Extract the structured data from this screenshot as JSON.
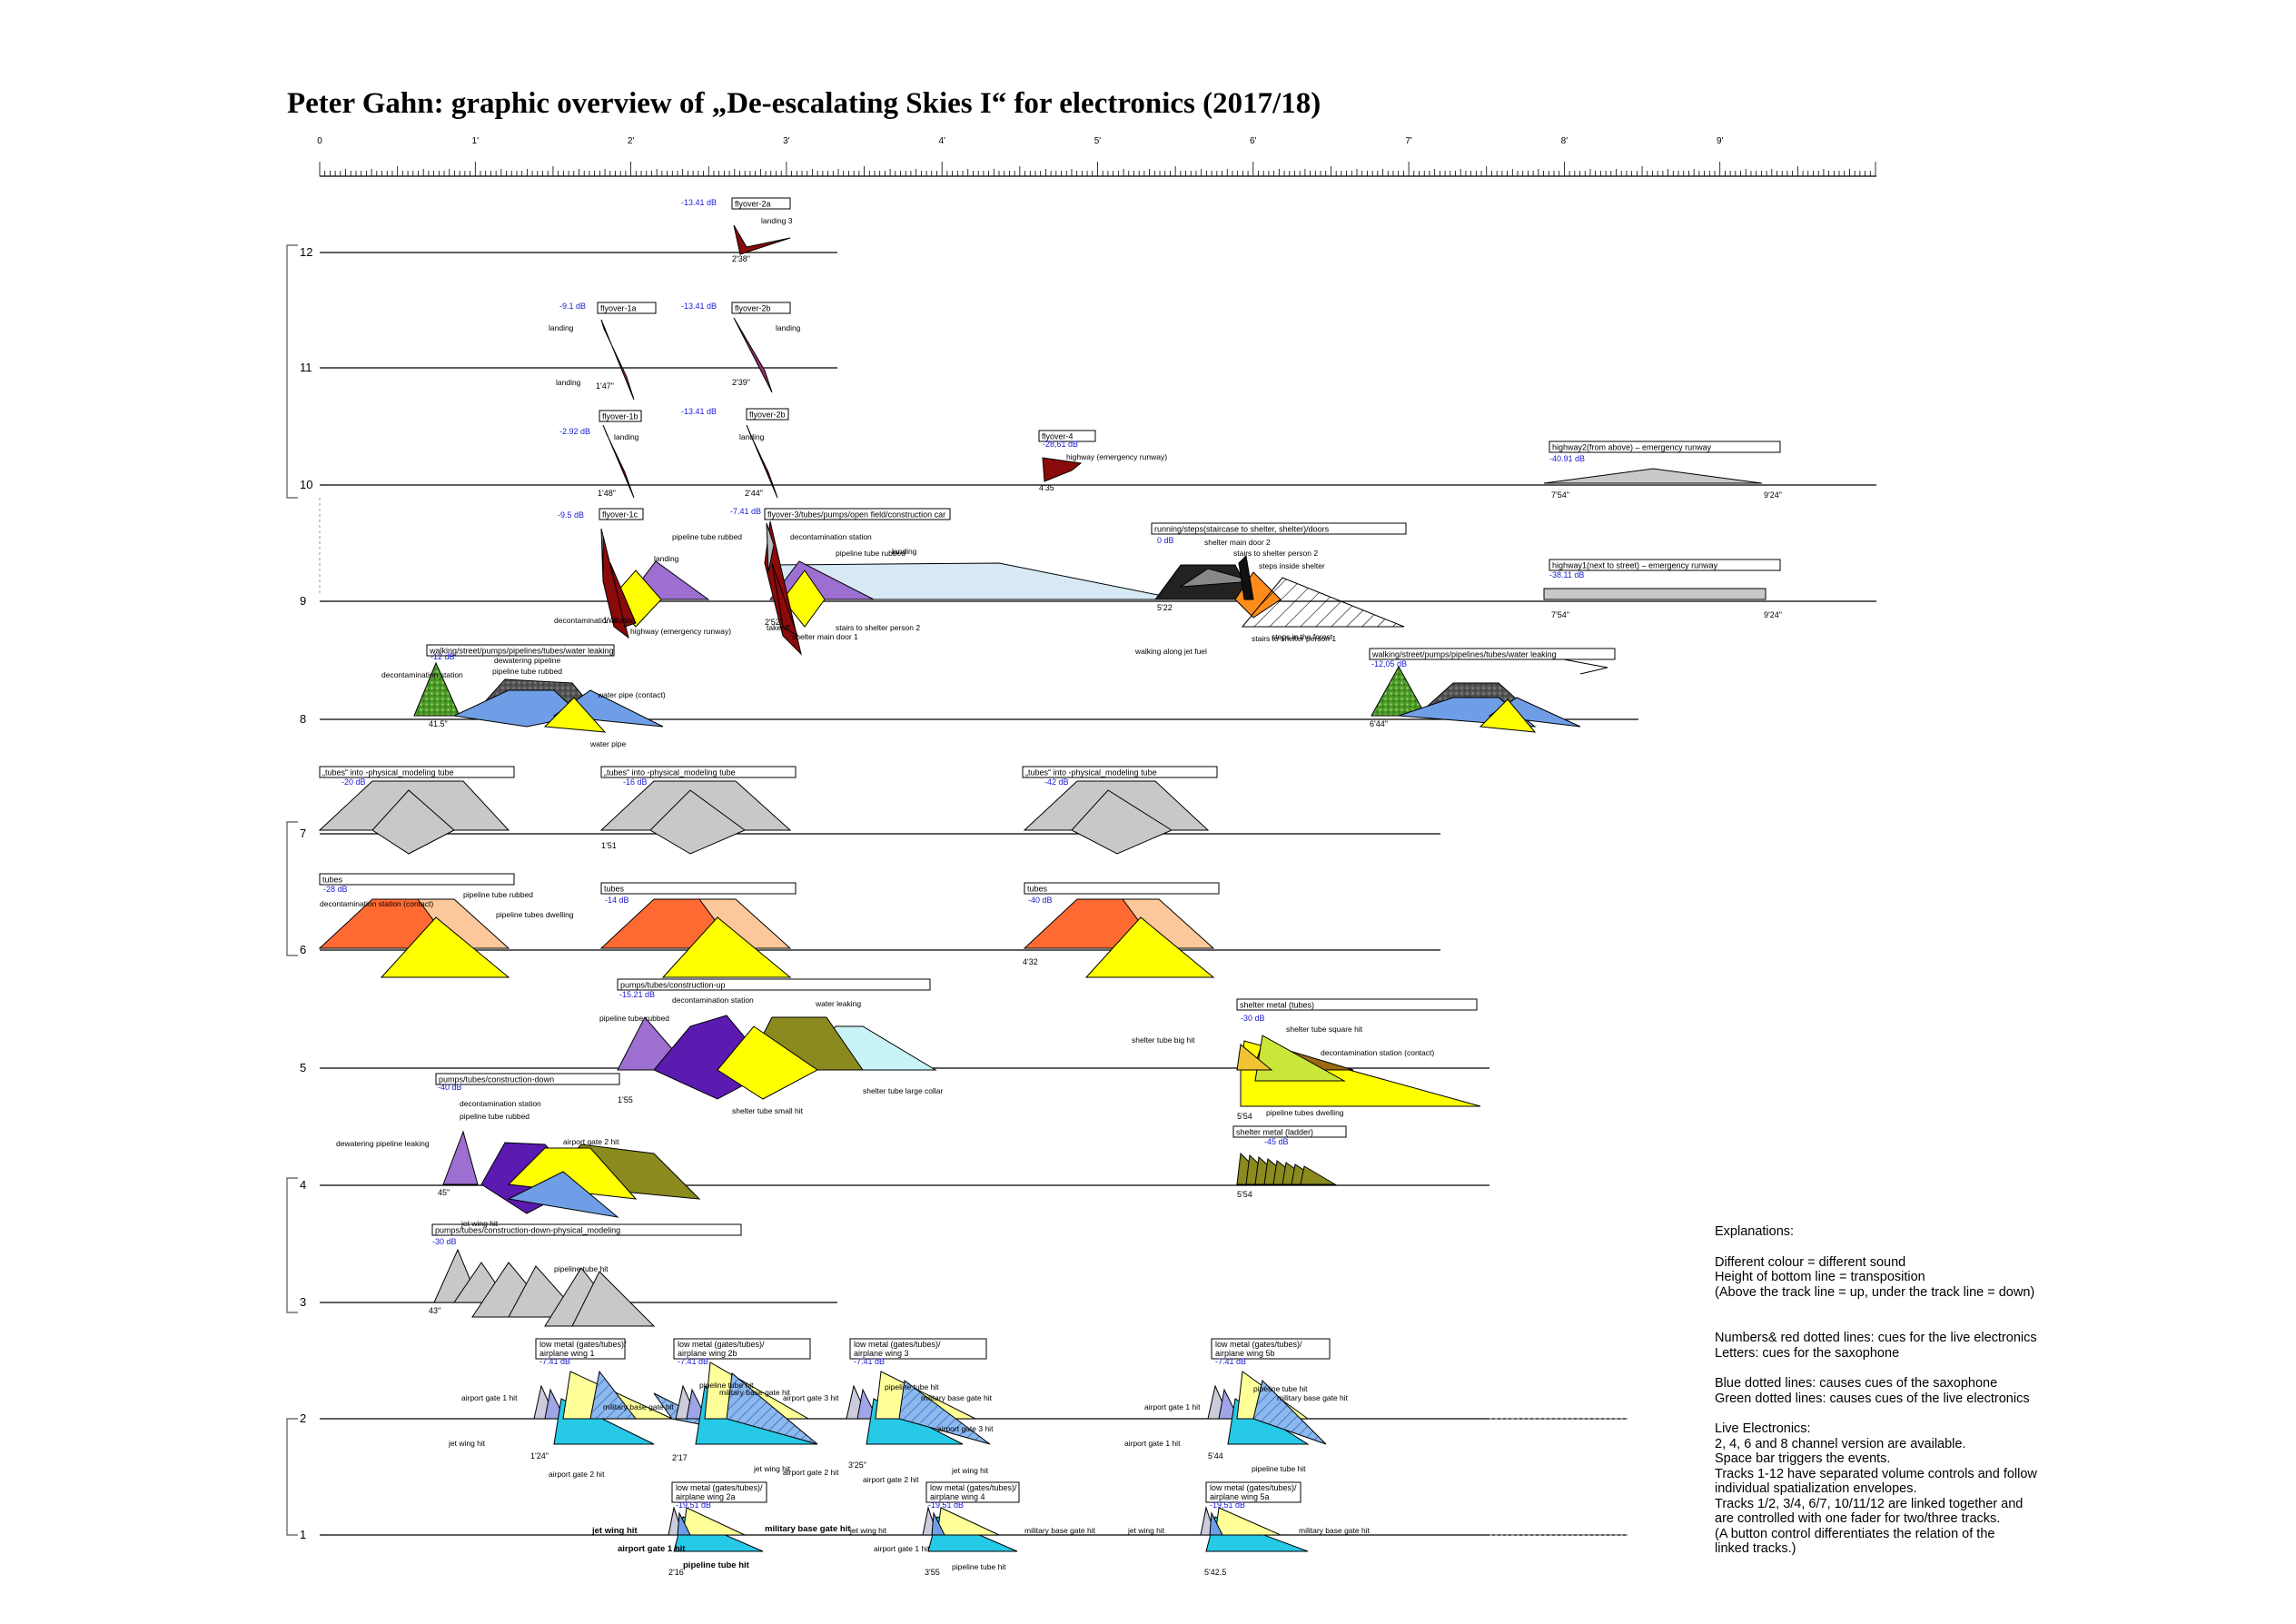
{
  "title": "Peter Gahn: graphic overview of „De-escalating Skies I“ for electronics (2017/18)",
  "ruler": {
    "labels": [
      "0",
      "1'",
      "2'",
      "3'",
      "4'",
      "5'",
      "6'",
      "7'",
      "8'",
      "9'"
    ]
  },
  "tracks": [
    "12",
    "11",
    "10",
    "9",
    "8",
    "7",
    "6",
    "5",
    "4",
    "3",
    "2",
    "1"
  ],
  "boxes": [
    {
      "text": "flyover-2a"
    },
    {
      "text": "flyover-1a"
    },
    {
      "text": "flyover-2b"
    },
    {
      "text": "flyover-1b"
    },
    {
      "text": "flyover-2b"
    },
    {
      "text": "flyover-4"
    },
    {
      "text": "highway2(from above) – emergency runway"
    },
    {
      "text": "flyover-1c"
    },
    {
      "text": "flyover-3/tubes/pumps/open field/construction car"
    },
    {
      "text": "running/steps(staircase to shelter, shelter)/doors"
    },
    {
      "text": "highway1(next to street) – emergency runway"
    },
    {
      "text": "walking/street/pumps/pipelines/tubes/water leaking"
    },
    {
      "text": "walking/street/pumps/pipelines/tubes/water leaking"
    },
    {
      "text": "„tubes“ into -physical_modeling tube"
    },
    {
      "text": "„tubes“ into -physical_modeling tube"
    },
    {
      "text": "„tubes“ into -physical_modeling tube"
    },
    {
      "text": "tubes"
    },
    {
      "text": "tubes"
    },
    {
      "text": "tubes"
    },
    {
      "text": "pumps/tubes/construction-up"
    },
    {
      "text": "shelter metal (tubes)"
    },
    {
      "text": "pumps/tubes/construction-down"
    },
    {
      "text": "shelter metal (ladder)"
    },
    {
      "text": "pumps/tubes/construction-down-physical_modeling"
    },
    {
      "text": "low metal (gates/tubes)/ airplane wing 1"
    },
    {
      "text": "low metal (gates/tubes)/ airplane wing 2b"
    },
    {
      "text": "low metal (gates/tubes)/ airplane wing 3"
    },
    {
      "text": "low metal (gates/tubes)/ airplane wing 5b"
    },
    {
      "text": "low metal (gates/tubes)/ airplane wing 2a"
    },
    {
      "text": "low metal (gates/tubes)/ airplane wing 4"
    },
    {
      "text": "low metal (gates/tubes)/ airplane wing 5a"
    }
  ],
  "db_labels": [
    "-13.41 dB",
    "-9.1 dB",
    "-13.41 dB",
    "-2.92 dB",
    "-13.41 dB",
    "-28,61 dB",
    "-40.91 dB",
    "-9.5 dB",
    "-7.41 dB",
    "0 dB",
    "-38.11 dB",
    "-12 dB",
    "-12,05 dB",
    "-20 dB",
    "-16 dB",
    "-42 dB",
    "-28 dB",
    "-14 dB",
    "-40 dB",
    "-15.21 dB",
    "-30 dB",
    "-40 dB",
    "-45 dB",
    "-30 dB",
    "-7.41 dB",
    "-7.41 dB",
    "-7.41 dB",
    "-7.41 dB",
    "-19,51 dB",
    "-19,51 dB",
    "-19,51 dB"
  ],
  "times": [
    "2'38\"",
    "1'47\"",
    "2'39\"",
    "1'48\"",
    "2'44\"",
    "4'35",
    "7'54\"",
    "9'24\"",
    "1'49",
    "2'52\"",
    "5'22",
    "7'54\"",
    "9'24\"",
    "41.5\"",
    "6'44\"",
    "1'51",
    "4'32",
    "1'55",
    "5'54",
    "45\"",
    "5'54",
    "43\"",
    "1'24\"",
    "2'17",
    "3'25\"",
    "5'44",
    "2'16",
    "3'55",
    "5'42.5"
  ],
  "annotations": [
    "landing 3",
    "landing",
    "landing",
    "landing",
    "landing",
    "landing",
    "highway (emergency runway)",
    "decontamination station",
    "pipeline tube rubbed",
    "landing",
    "highway (emergency runway)",
    "takeoff",
    "decontamination station",
    "pipeline tube rubbed",
    "landing",
    "stairs to shelter person 2",
    "shelter main door 1",
    "shelter main door 2",
    "stairs to shelter person 2",
    "steps inside shelter",
    "stairs to shelter person 1",
    "steps in the forest",
    "walking along jet fuel",
    "decontamination station",
    "dewatering pipeline",
    "pipeline tube rubbed",
    "water pipe (contact)",
    "water pipe",
    "pipeline tube rubbed",
    "decontamination station (contact)",
    "pipeline tubes dwelling",
    "decontamination station",
    "water leaking",
    "pipeline tube rubbed",
    "shelter tube large collar",
    "shelter tube small hit",
    "shelter tube square hit",
    "shelter tube big hit",
    "decontamination station (contact)",
    "pipeline tubes dwelling",
    "decontamination station",
    "pipeline tube rubbed",
    "dewatering pipeline leaking",
    "airport gate 2 hit",
    "jet wing hit",
    "pipeline tube hit",
    "airport gate 1 hit",
    "military base gate hit",
    "jet wing hit",
    "airport gate 2 hit",
    "pipeline tube hit",
    "military base gate hit",
    "airport gate 3 hit",
    "jet wing hit",
    "airport gate 2 hit",
    "pipeline tube hit",
    "military base gate hit",
    "airport gate 3 hit",
    "airport gate 2 hit",
    "jet wing hit",
    "pipeline tube hit",
    "airport gate 1 hit",
    "military base gate hit",
    "airport gate 1 hit",
    "pipeline tube hit",
    "jet wing hit",
    "military base gate hit",
    "airport gate 1 hit",
    "pipeline tube hit",
    "jet wing hit",
    "military base gate hit",
    "airport gate 1 hit",
    "pipeline tube hit",
    "jet wing hit",
    "military base gate hit"
  ],
  "explanations": {
    "heading": "Explanations:",
    "lines1": [
      "Different colour = different sound",
      "Height of bottom line = transposition",
      "(Above the track line = up, under the track line = down)"
    ],
    "lines2": [
      "Numbers& red dotted lines: cues for the live electronics",
      "Letters: cues for the saxophone"
    ],
    "lines3": [
      "Blue dotted lines: causes cues of the saxophone",
      "Green dotted lines: causes cues of the live electronics"
    ],
    "lines4": [
      "Live Electronics:",
      "2, 4, 6 and 8 channel version are available.",
      "Space bar triggers the events.",
      "Tracks 1-12 have separated volume controls and follow",
      "individual spatialization envelopes.",
      "Tracks 1/2, 3/4, 6/7, 10/11/12 are linked together and",
      "are controlled with one fader for two/three tracks.",
      "(A button control differentiates the relation of the",
      "linked tracks.)"
    ]
  },
  "colors": {
    "darkred": "#8b0a0a",
    "magenta": "#9b2f6a",
    "yellow": "#ffff00",
    "purple": "#9d6fd0",
    "indigo": "#5b1ab0",
    "lightblue": "#d6e9f5",
    "cyan": "#c8f4f7",
    "gray": "#c8c8c8",
    "orange": "#ff6a33",
    "peach": "#fcc79a",
    "olive": "#8a8a1e",
    "brown": "#9b6a10",
    "blue": "#6f9ee6"
  }
}
